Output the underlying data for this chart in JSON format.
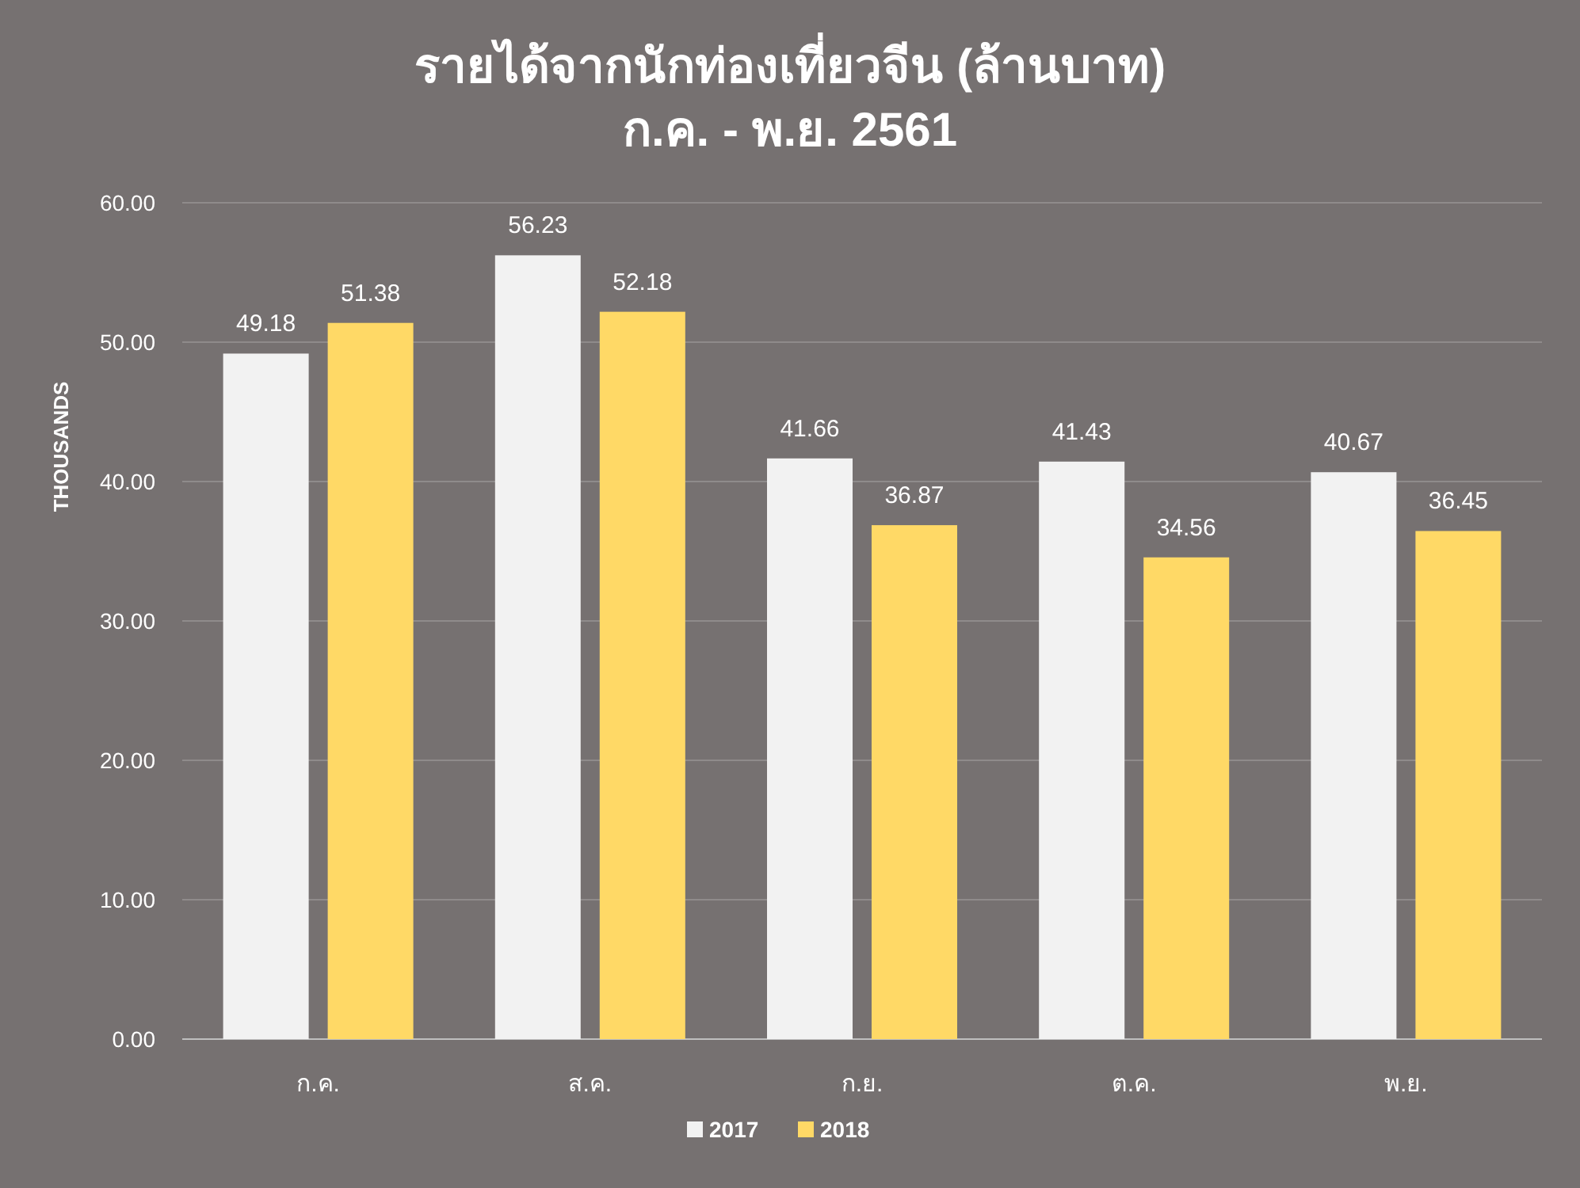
{
  "chart_data": {
    "type": "bar",
    "title": "รายได้จากนักท่องเที่ยวจีน (ล้านบาท)",
    "subtitle": "ก.ค. - พ.ย. 2561",
    "ylabel": "THOUSANDS",
    "categories": [
      "ก.ค.",
      "ส.ค.",
      "ก.ย.",
      "ต.ค.",
      "พ.ย."
    ],
    "series": [
      {
        "name": "2017",
        "color": "#f2f2f2",
        "values": [
          49.18,
          56.23,
          41.66,
          41.43,
          40.67
        ]
      },
      {
        "name": "2018",
        "color": "#ffd966",
        "values": [
          51.38,
          52.18,
          36.87,
          34.56,
          36.45
        ]
      }
    ],
    "ylim": [
      0,
      60
    ],
    "yticks": [
      {
        "value": 0,
        "label": "0.00"
      },
      {
        "value": 10,
        "label": "10.00"
      },
      {
        "value": 20,
        "label": "20.00"
      },
      {
        "value": 30,
        "label": "30.00"
      },
      {
        "value": 40,
        "label": "40.00"
      },
      {
        "value": 50,
        "label": "50.00"
      },
      {
        "value": 60,
        "label": "60.00"
      }
    ],
    "grid": "y",
    "legend": "bottom",
    "data_labels": true
  }
}
